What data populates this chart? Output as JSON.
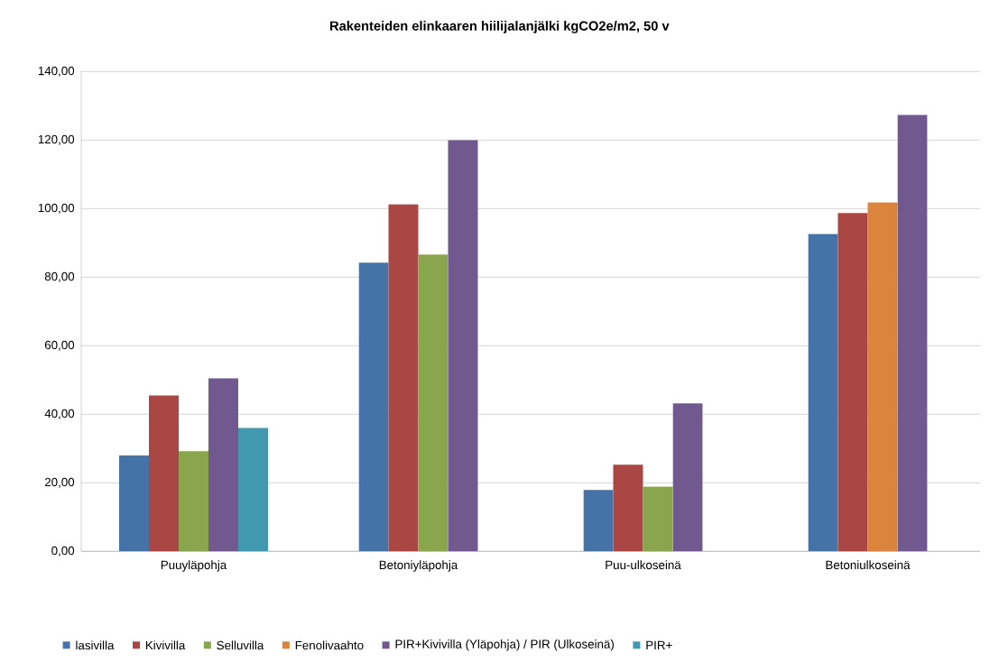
{
  "chart_data": {
    "type": "bar",
    "title": "Rakenteiden elinkaaren hiilijalanjälki kgCO2e/m2, 50 v",
    "categories": [
      "Puuyläpohja",
      "Betoniyläpohja",
      "Puu-ulkoseinä",
      "Betoniulkoseinä"
    ],
    "series": [
      {
        "name": "lasivilla",
        "color": "#4572a7",
        "values": [
          28,
          84.2,
          17.9,
          92.6
        ]
      },
      {
        "name": "Kivivilla",
        "color": "#aa4643",
        "values": [
          45.5,
          101.3,
          25.3,
          98.7
        ]
      },
      {
        "name": "Selluvilla",
        "color": "#89a54e",
        "values": [
          29.2,
          86.6,
          18.9,
          null
        ]
      },
      {
        "name": "Fenolivaahto",
        "color": "#db843d",
        "values": [
          null,
          null,
          null,
          101.8
        ]
      },
      {
        "name": "PIR+Kivivilla (Yläpohja) / PIR (Ulkoseinä)",
        "color": "#71588f",
        "values": [
          50.5,
          120,
          43.2,
          127.4
        ]
      },
      {
        "name": "PIR+",
        "color": "#4198af",
        "values": [
          36,
          null,
          null,
          null
        ]
      }
    ],
    "ylim": [
      0,
      140
    ],
    "yticks": [
      {
        "value": 0,
        "label": "0,00"
      },
      {
        "value": 20,
        "label": "20,00"
      },
      {
        "value": 40,
        "label": "40,00"
      },
      {
        "value": 60,
        "label": "60,00"
      },
      {
        "value": 80,
        "label": "80,00"
      },
      {
        "value": 100,
        "label": "100,00"
      },
      {
        "value": 120,
        "label": "120,00"
      },
      {
        "value": 140,
        "label": "140,00"
      }
    ],
    "grid": "y",
    "legend": "bottom"
  }
}
